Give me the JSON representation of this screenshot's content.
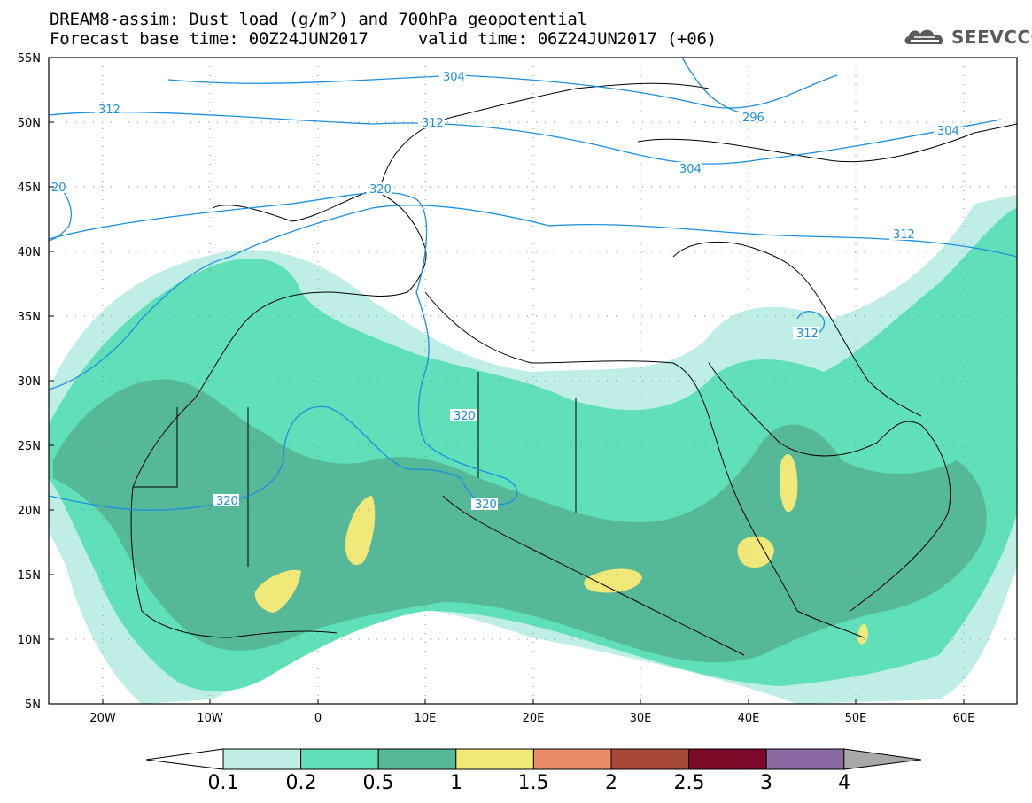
{
  "header": {
    "title_line1": "DREAM8-assim: Dust load (g/m²) and 700hPa geopotential",
    "title_line2": "Forecast base time: 00Z24JUN2017     valid time: 06Z24JUN2017 (+06)",
    "logo_text": "SEEVCCC",
    "logo_icon": "cloud-icon"
  },
  "map": {
    "lat_labels": [
      "55N",
      "50N",
      "45N",
      "40N",
      "35N",
      "30N",
      "25N",
      "20N",
      "15N",
      "10N",
      "5N"
    ],
    "lon_labels": [
      "20W",
      "10W",
      "0",
      "10E",
      "20E",
      "30E",
      "40E",
      "50E",
      "60E"
    ],
    "lat_range": [
      5,
      55
    ],
    "lon_range": [
      -25,
      65
    ],
    "contour_color": "#1a8fe0",
    "contour_labels": [
      "304",
      "296",
      "312",
      "312",
      "304",
      "304",
      "320",
      "20",
      "312",
      "312",
      "320",
      "320",
      "320"
    ]
  },
  "colorbar": {
    "levels": [
      "0.1",
      "0.2",
      "0.5",
      "1",
      "1.5",
      "2",
      "2.5",
      "3",
      "4"
    ],
    "colors": [
      "#ffffff",
      "#bfeee6",
      "#5fe0b8",
      "#55b898",
      "#f0e878",
      "#e88c68",
      "#a84838",
      "#7a0a28",
      "#8a68a0",
      "#a8a8a8"
    ]
  },
  "dust_colors": {
    "low": "#bfeee6",
    "mid": "#5fe0b8",
    "high": "#55b898",
    "very_high": "#f0e878"
  }
}
